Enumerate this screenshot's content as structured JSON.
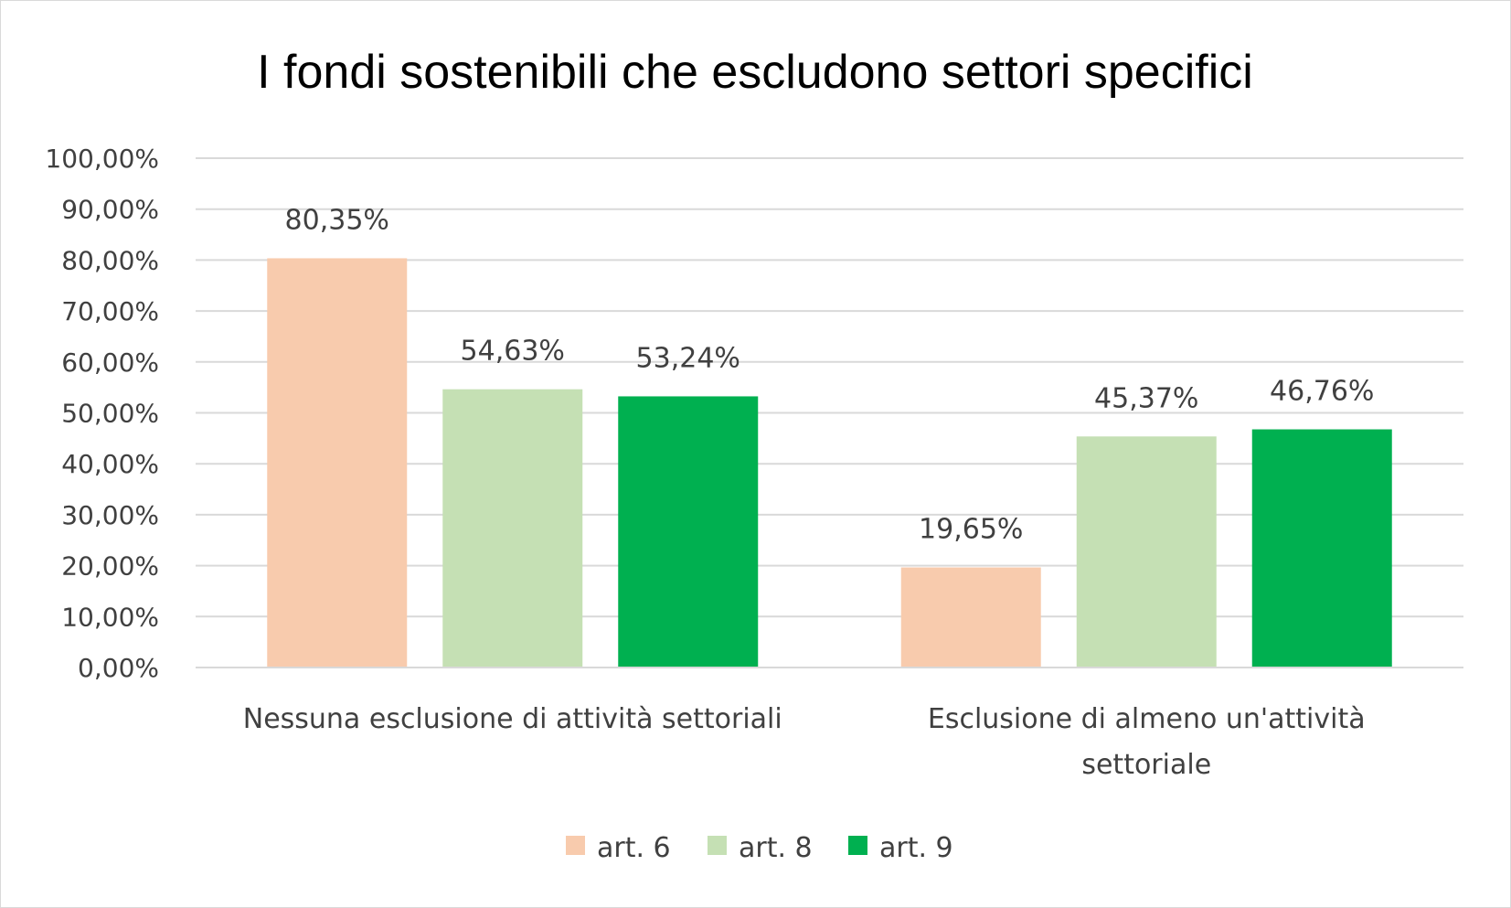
{
  "chart_data": {
    "type": "bar",
    "title": "I fondi sostenibili che escludono settori specifici",
    "categories": [
      [
        "Nessuna esclusione di attività settoriali"
      ],
      [
        "Esclusione di almeno un'attività",
        "settoriale"
      ]
    ],
    "series": [
      {
        "name": "art. 6",
        "color": "#f8cbad",
        "values": [
          80.35,
          19.65
        ],
        "labels": [
          "80,35%",
          "19,65%"
        ]
      },
      {
        "name": "art. 8",
        "color": "#c5e0b4",
        "values": [
          54.63,
          45.37
        ],
        "labels": [
          "54,63%",
          "45,37%"
        ]
      },
      {
        "name": "art. 9",
        "color": "#00b050",
        "values": [
          53.24,
          46.76
        ],
        "labels": [
          "53,24%",
          "46,76%"
        ]
      }
    ],
    "ylim": [
      0,
      100
    ],
    "yticks": [
      0,
      10,
      20,
      30,
      40,
      50,
      60,
      70,
      80,
      90,
      100
    ],
    "ytick_labels": [
      "0,00%",
      "10,00%",
      "20,00%",
      "30,00%",
      "40,00%",
      "50,00%",
      "60,00%",
      "70,00%",
      "80,00%",
      "90,00%",
      "100,00%"
    ],
    "grid": true,
    "gridline_color": "#d9d9d9",
    "legend_position": "bottom"
  }
}
